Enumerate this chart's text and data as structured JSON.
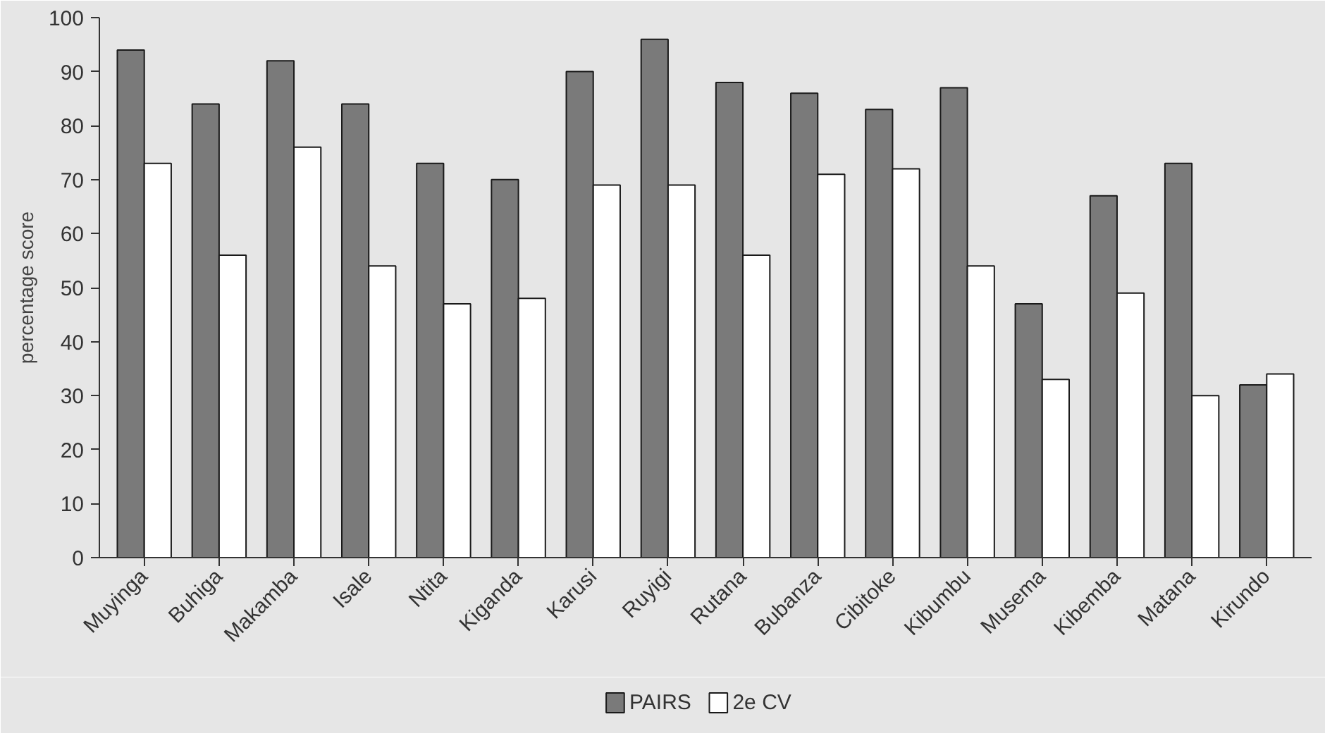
{
  "chart_data": {
    "type": "bar",
    "ylabel": "percentage score",
    "categories": [
      "Muyinga",
      "Buhiga",
      "Makamba",
      "Isale",
      "Ntita",
      "Kiganda",
      "Karusi",
      "Ruyigi",
      "Rutana",
      "Bubanza",
      "Cibitoke",
      "Kibumbu",
      "Musema",
      "Kibemba",
      "Matana",
      "Kirundo"
    ],
    "series": [
      {
        "name": "PAIRS",
        "color": "#7a7a7a",
        "values": [
          94,
          84,
          92,
          84,
          73,
          70,
          90,
          96,
          88,
          86,
          83,
          87,
          47,
          67,
          73,
          32
        ]
      },
      {
        "name": "2e CV",
        "color": "#ffffff",
        "values": [
          73,
          56,
          76,
          54,
          47,
          48,
          69,
          69,
          56,
          71,
          72,
          54,
          33,
          49,
          30,
          34
        ]
      }
    ],
    "ylim": [
      0,
      100
    ],
    "yticks": [
      0,
      10,
      20,
      30,
      40,
      50,
      60,
      70,
      80,
      90,
      100
    ],
    "legend": "bottom"
  }
}
